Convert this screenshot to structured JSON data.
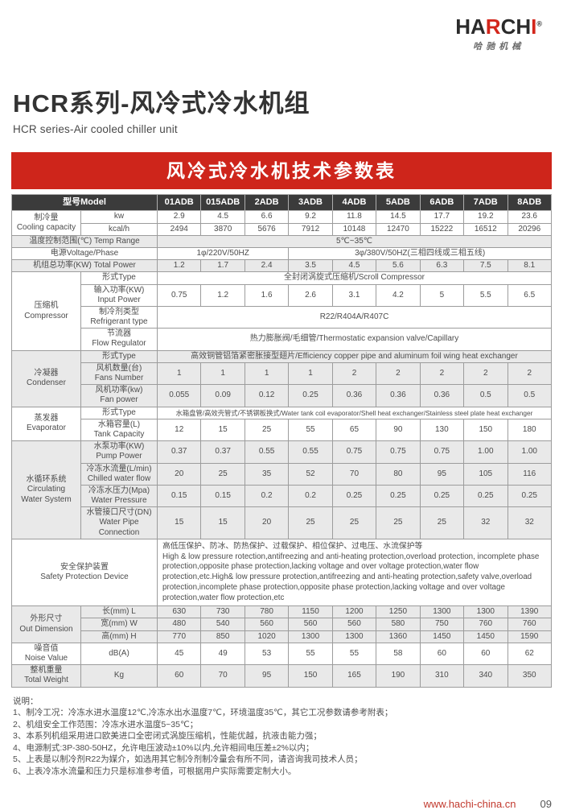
{
  "brand": {
    "p1": "HA",
    "p2": "R",
    "p3": "CH",
    "p4": "I",
    "reg_mark": "®",
    "logo_sub": "哈驰机械"
  },
  "header": {
    "title": "HCR系列-风冷式冷水机组",
    "subtitle": "HCR series-Air cooled chiller unit"
  },
  "banner": {
    "title": "风冷式冷水机技术参数表"
  },
  "colors": {
    "accent_red": "#ce251b",
    "table_header_dark": "#3b3b3b",
    "row_shade_gray": "#e9e9e9",
    "footer_url_red": "#c23a2e"
  },
  "table": {
    "rows": [
      {
        "cells": [
          {
            "t": "型号Model",
            "cs": 2
          },
          {
            "t": "01ADB"
          },
          {
            "t": "015ADB"
          },
          {
            "t": "2ADB"
          },
          {
            "t": "3ADB"
          },
          {
            "t": "4ADB"
          },
          {
            "t": "5ADB"
          },
          {
            "t": "6ADB"
          },
          {
            "t": "7ADB"
          },
          {
            "t": "8ADB"
          }
        ]
      },
      {
        "cells": [
          {
            "t": "制冷量\nCooling capacity",
            "rs": 2
          },
          {
            "t": "kw"
          },
          {
            "t": "2.9"
          },
          {
            "t": "4.5"
          },
          {
            "t": "6.6"
          },
          {
            "t": "9.2"
          },
          {
            "t": "11.8"
          },
          {
            "t": "14.5"
          },
          {
            "t": "17.7"
          },
          {
            "t": "19.2"
          },
          {
            "t": "23.6"
          }
        ]
      },
      {
        "cells": [
          {
            "t": "kcal/h"
          },
          {
            "t": "2494"
          },
          {
            "t": "3870"
          },
          {
            "t": "5676"
          },
          {
            "t": "7912"
          },
          {
            "t": "10148"
          },
          {
            "t": "12470"
          },
          {
            "t": "15222"
          },
          {
            "t": "16512"
          },
          {
            "t": "20296"
          }
        ]
      },
      {
        "shade": true,
        "cells": [
          {
            "t": "温度控制范围(℃) Temp Range",
            "cs": 2
          },
          {
            "t": "5℃~35℃",
            "cs": 9
          }
        ]
      },
      {
        "cells": [
          {
            "t": "电源Voltage/Phase",
            "cs": 2
          },
          {
            "t": "1φ/220V/50HZ",
            "cs": 3
          },
          {
            "t": "3φ/380V/50HZ(三相四线或三相五线)",
            "cs": 6
          }
        ]
      },
      {
        "shade": true,
        "cells": [
          {
            "t": "机组总功率(KW) Total Power",
            "cs": 2
          },
          {
            "t": "1.2"
          },
          {
            "t": "1.7"
          },
          {
            "t": "2.4"
          },
          {
            "t": "3.5"
          },
          {
            "t": "4.5"
          },
          {
            "t": "5.6"
          },
          {
            "t": "6.3"
          },
          {
            "t": "7.5"
          },
          {
            "t": "8.1"
          }
        ]
      },
      {
        "cells": [
          {
            "t": "压缩机\nCompressor",
            "rs": 4
          },
          {
            "t": "形式Type"
          },
          {
            "t": "全封闭涡旋式压缩机/Scroll Compressor",
            "cs": 9
          }
        ]
      },
      {
        "cells": [
          {
            "t": "输入功率(KW)\nInput Power"
          },
          {
            "t": "0.75"
          },
          {
            "t": "1.2"
          },
          {
            "t": "1.6"
          },
          {
            "t": "2.6"
          },
          {
            "t": "3.1"
          },
          {
            "t": "4.2"
          },
          {
            "t": "5"
          },
          {
            "t": "5.5"
          },
          {
            "t": "6.5"
          }
        ]
      },
      {
        "cells": [
          {
            "t": "制冷剂类型\nRefrigerant type"
          },
          {
            "t": "R22/R404A/R407C",
            "cs": 9
          }
        ]
      },
      {
        "cells": [
          {
            "t": "节流器\nFlow Regulator"
          },
          {
            "t": "热力膨胀阀/毛细管/Thermostatic expansion valve/Capillary",
            "cs": 9
          }
        ]
      },
      {
        "shade": true,
        "cells": [
          {
            "t": "冷凝器\nCondenser",
            "rs": 3
          },
          {
            "t": "形式Type"
          },
          {
            "t": "高效铜管铝箔紧密胀接型翅片/Efficiency copper pipe and aluminum foil wing heat exchanger",
            "cs": 9
          }
        ]
      },
      {
        "shade": true,
        "cells": [
          {
            "t": "风机数量(台)\nFans Number"
          },
          {
            "t": "1"
          },
          {
            "t": "1"
          },
          {
            "t": "1"
          },
          {
            "t": "1"
          },
          {
            "t": "2"
          },
          {
            "t": "2"
          },
          {
            "t": "2"
          },
          {
            "t": "2"
          },
          {
            "t": "2"
          }
        ]
      },
      {
        "shade": true,
        "cells": [
          {
            "t": "风机功率(kw)\nFan power"
          },
          {
            "t": "0.055"
          },
          {
            "t": "0.09"
          },
          {
            "t": "0.12"
          },
          {
            "t": "0.25"
          },
          {
            "t": "0.36"
          },
          {
            "t": "0.36"
          },
          {
            "t": "0.36"
          },
          {
            "t": "0.5"
          },
          {
            "t": "0.5"
          }
        ]
      },
      {
        "cells": [
          {
            "t": "蒸发器\nEvaporator",
            "rs": 2
          },
          {
            "t": "形式Type"
          },
          {
            "t": "水箱盘管/高效壳管式/不锈钢板换式/Water tank coil evaporator/Shell heat exchanger/Stainless steel plate heat exchanger",
            "cs": 9,
            "cls": "small"
          }
        ]
      },
      {
        "cells": [
          {
            "t": "水箱容量(L)\nTank Capacity"
          },
          {
            "t": "12"
          },
          {
            "t": "15"
          },
          {
            "t": "25"
          },
          {
            "t": "55"
          },
          {
            "t": "65"
          },
          {
            "t": "90"
          },
          {
            "t": "130"
          },
          {
            "t": "150"
          },
          {
            "t": "180"
          }
        ]
      },
      {
        "shade": true,
        "cells": [
          {
            "t": "水循环系统\nCirculating\nWater System",
            "rs": 4
          },
          {
            "t": "水泵功率(KW)\nPump Power"
          },
          {
            "t": "0.37"
          },
          {
            "t": "0.37"
          },
          {
            "t": "0.55"
          },
          {
            "t": "0.55"
          },
          {
            "t": "0.75"
          },
          {
            "t": "0.75"
          },
          {
            "t": "0.75"
          },
          {
            "t": "1.00"
          },
          {
            "t": "1.00"
          }
        ]
      },
      {
        "shade": true,
        "cells": [
          {
            "t": "冷冻水流量(L/min)\nChilled water flow"
          },
          {
            "t": "20"
          },
          {
            "t": "25"
          },
          {
            "t": "35"
          },
          {
            "t": "52"
          },
          {
            "t": "70"
          },
          {
            "t": "80"
          },
          {
            "t": "95"
          },
          {
            "t": "105"
          },
          {
            "t": "116"
          }
        ]
      },
      {
        "shade": true,
        "cells": [
          {
            "t": "冷冻水压力(Mpa)\nWater Pressure"
          },
          {
            "t": "0.15"
          },
          {
            "t": "0.15"
          },
          {
            "t": "0.2"
          },
          {
            "t": "0.2"
          },
          {
            "t": "0.25"
          },
          {
            "t": "0.25"
          },
          {
            "t": "0.25"
          },
          {
            "t": "0.25"
          },
          {
            "t": "0.25"
          }
        ]
      },
      {
        "shade": true,
        "cells": [
          {
            "t": "水管接口尺寸(DN)\nWater Pipe Connection"
          },
          {
            "t": "15"
          },
          {
            "t": "15"
          },
          {
            "t": "20"
          },
          {
            "t": "25"
          },
          {
            "t": "25"
          },
          {
            "t": "25"
          },
          {
            "t": "25"
          },
          {
            "t": "32"
          },
          {
            "t": "32"
          }
        ]
      },
      {
        "cells": [
          {
            "t": "安全保护装置\nSafety Protection Device",
            "cs": 2
          },
          {
            "t": "高低压保护、防冰、防热保护、过载保护、相位保护、过电压、水流保护等\nHigh & low pressure rotection,antifreezing and anti-heating protection,overload protection, incomplete phase protection,opposite phase protection,lacking voltage and over voltage protection,water flow protection,etc.High& low pressure protection,antifreezing and anti-heating protection,safety valve,overload protection,incomplete phase protection,opposite phase protection,lacking voltage and over voltage protection,water flow protection,etc",
            "cs": 9,
            "cls": "left"
          }
        ]
      },
      {
        "shade": true,
        "cells": [
          {
            "t": "外形尺寸\nOut Dimension",
            "rs": 3
          },
          {
            "t": "长(mm)  L"
          },
          {
            "t": "630"
          },
          {
            "t": "730"
          },
          {
            "t": "780"
          },
          {
            "t": "1150"
          },
          {
            "t": "1200"
          },
          {
            "t": "1250"
          },
          {
            "t": "1300"
          },
          {
            "t": "1300"
          },
          {
            "t": "1390"
          }
        ]
      },
      {
        "shade": true,
        "cells": [
          {
            "t": "宽(mm)  W"
          },
          {
            "t": "480"
          },
          {
            "t": "540"
          },
          {
            "t": "560"
          },
          {
            "t": "560"
          },
          {
            "t": "560"
          },
          {
            "t": "580"
          },
          {
            "t": "750"
          },
          {
            "t": "760"
          },
          {
            "t": "760"
          }
        ]
      },
      {
        "shade": true,
        "cells": [
          {
            "t": "高(mm)  H"
          },
          {
            "t": "770"
          },
          {
            "t": "850"
          },
          {
            "t": "1020"
          },
          {
            "t": "1300"
          },
          {
            "t": "1300"
          },
          {
            "t": "1360"
          },
          {
            "t": "1450"
          },
          {
            "t": "1450"
          },
          {
            "t": "1590"
          }
        ]
      },
      {
        "cells": [
          {
            "t": "噪音值\nNoise Value"
          },
          {
            "t": "dB(A)"
          },
          {
            "t": "45"
          },
          {
            "t": "49"
          },
          {
            "t": "53"
          },
          {
            "t": "55"
          },
          {
            "t": "55"
          },
          {
            "t": "58"
          },
          {
            "t": "60"
          },
          {
            "t": "60"
          },
          {
            "t": "62"
          }
        ]
      },
      {
        "shade": true,
        "cells": [
          {
            "t": "整机重量\nTotal Weight"
          },
          {
            "t": "Kg"
          },
          {
            "t": "60"
          },
          {
            "t": "70"
          },
          {
            "t": "95"
          },
          {
            "t": "150"
          },
          {
            "t": "165"
          },
          {
            "t": "190"
          },
          {
            "t": "310"
          },
          {
            "t": "340"
          },
          {
            "t": "350"
          }
        ]
      }
    ]
  },
  "notes": {
    "heading": "说明：",
    "items": [
      "1、制冷工况：冷冻水进水温度12℃,冷冻水出水温度7℃，环境温度35℃，其它工况参数请参考附表；",
      "2、机组安全工作范围：冷冻水进水温度5~35℃；",
      "3、本系列机组采用进口欧美进口全密闭式涡旋压缩机，性能优越，抗液击能力强；",
      "4、电源制式:3P-380-50HZ，允许电压波动±10%以内,允许相间电压差±2%以内；",
      "5、上表是以制冷剂R22为媒介，如选用其它制冷剂制冷量会有所不同，请咨询我司技术人员；",
      "6、上表冷冻水流量和压力只是标准参考值，可根据用户实际需要定制大小。"
    ]
  },
  "footer": {
    "url": "www.hachi-china.cn",
    "page_number": "09"
  }
}
